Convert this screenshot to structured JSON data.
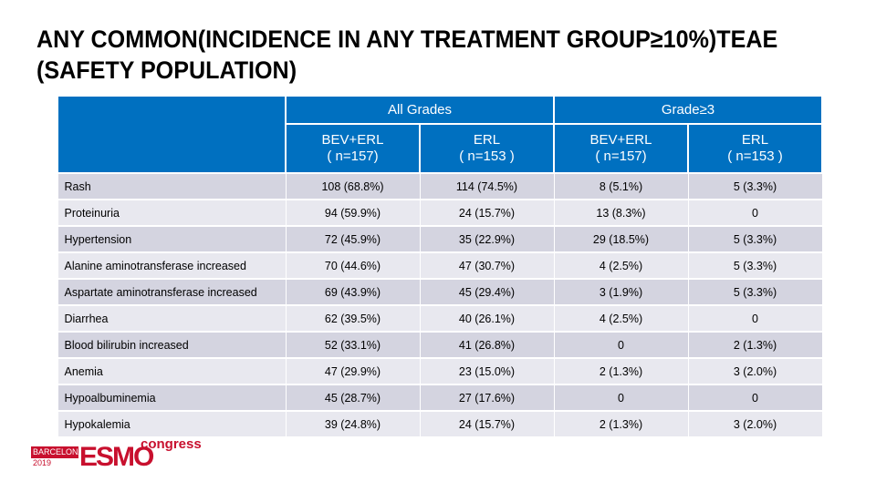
{
  "title": {
    "line1": "ANY COMMON(INCIDENCE IN ANY TREATMENT GROUP≥10%)TEAE",
    "line2": "(SAFETY POPULATION)"
  },
  "table": {
    "group_headers": [
      "All Grades",
      "Grade≥3"
    ],
    "columns": [
      {
        "name": "BEV+ERL",
        "n": "( n=157)"
      },
      {
        "name": "ERL",
        "n": "( n=153 )"
      },
      {
        "name": "BEV+ERL",
        "n": "( n=157)"
      },
      {
        "name": "ERL",
        "n": "( n=153 )"
      }
    ],
    "rows": [
      {
        "label": "Rash",
        "values": [
          "108 (68.8%)",
          "114 (74.5%)",
          "8 (5.1%)",
          "5 (3.3%)"
        ]
      },
      {
        "label": "Proteinuria",
        "values": [
          "94 (59.9%)",
          "24 (15.7%)",
          "13 (8.3%)",
          "0"
        ]
      },
      {
        "label": "Hypertension",
        "values": [
          "72 (45.9%)",
          "35 (22.9%)",
          "29 (18.5%)",
          "5 (3.3%)"
        ]
      },
      {
        "label": "Alanine aminotransferase increased",
        "values": [
          "70 (44.6%)",
          "47 (30.7%)",
          "4 (2.5%)",
          "5 (3.3%)"
        ]
      },
      {
        "label": "Aspartate aminotransferase increased",
        "values": [
          "69 (43.9%)",
          "45 (29.4%)",
          "3 (1.9%)",
          "5 (3.3%)"
        ]
      },
      {
        "label": "Diarrhea",
        "values": [
          "62 (39.5%)",
          "40 (26.1%)",
          "4 (2.5%)",
          "0"
        ]
      },
      {
        "label": "Blood bilirubin increased",
        "values": [
          "52 (33.1%)",
          "41 (26.8%)",
          "0",
          "2 (1.3%)"
        ]
      },
      {
        "label": "Anemia",
        "values": [
          "47 (29.9%)",
          "23 (15.0%)",
          "2 (1.3%)",
          "3 (2.0%)"
        ]
      },
      {
        "label": "Hypoalbuminemia",
        "values": [
          "45 (28.7%)",
          "27 (17.6%)",
          "0",
          "0"
        ]
      },
      {
        "label": "Hypokalemia",
        "values": [
          "39 (24.8%)",
          "24 (15.7%)",
          "2 (1.3%)",
          "3 (2.0%)"
        ]
      }
    ]
  },
  "logo": {
    "city": "BARCELONA",
    "year": "2019",
    "brand": "ESMO",
    "suffix": "congress"
  },
  "colors": {
    "header_blue": "#0070C0",
    "row_dark": "#d4d4e0",
    "row_light": "#e8e8ef",
    "esmo_red": "#c8102e"
  }
}
